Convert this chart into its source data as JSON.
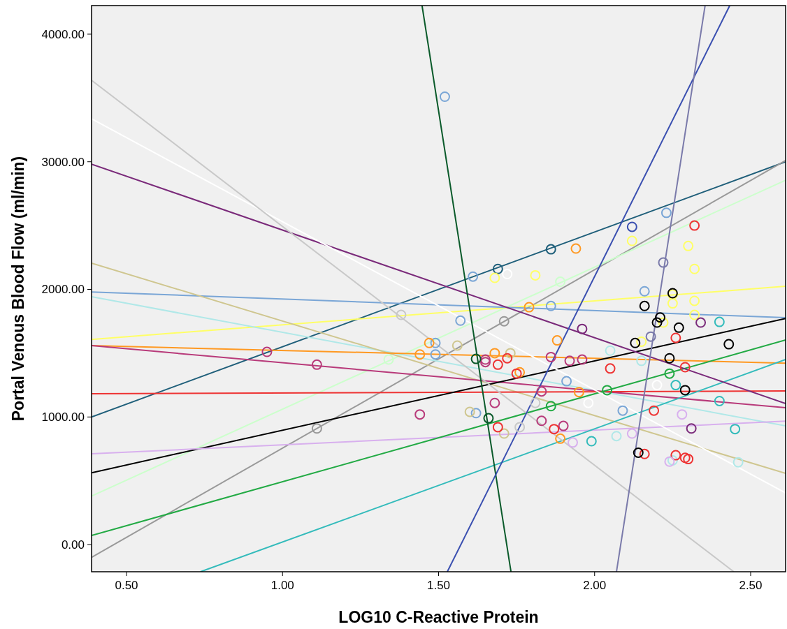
{
  "chart_data": {
    "type": "scatter",
    "xlabel": "LOG10 C-Reactive Protein",
    "ylabel": "Portal Venous Blood Flow (ml/min)",
    "xlim": [
      0.388,
      2.612
    ],
    "ylim": [
      -213,
      4224
    ],
    "xticks": [
      {
        "value": 0.5,
        "label": "0.50"
      },
      {
        "value": 1.0,
        "label": "1.00"
      },
      {
        "value": 1.5,
        "label": "1.50"
      },
      {
        "value": 2.0,
        "label": "2.00"
      },
      {
        "value": 2.5,
        "label": "2.50"
      }
    ],
    "yticks": [
      {
        "value": 0,
        "label": "0.00"
      },
      {
        "value": 1000,
        "label": "1000.00"
      },
      {
        "value": 2000,
        "label": "2000.00"
      },
      {
        "value": 3000,
        "label": "3000.00"
      },
      {
        "value": 4000,
        "label": "4000.00"
      }
    ],
    "grid": false,
    "marker": "circle",
    "series": [
      {
        "type": "scatter",
        "color": "#1f5f7a",
        "x": [
          1.69,
          1.86
        ],
        "values": [
          2160,
          2314
        ]
      },
      {
        "type": "line",
        "marker": "none",
        "color": "#1f5f7a",
        "x": [
          0.388,
          2.612
        ],
        "values": [
          1000,
          3000
        ]
      },
      {
        "type": "scatter",
        "color": "#999999",
        "x": [
          1.11,
          1.71
        ],
        "values": [
          910,
          1750
        ]
      },
      {
        "type": "line",
        "marker": "none",
        "color": "#999999",
        "x": [
          0.388,
          2.612
        ],
        "values": [
          -100,
          3010
        ]
      },
      {
        "type": "scatter",
        "color": "#ccffcc",
        "x": [
          1.34,
          1.89
        ],
        "values": [
          1450,
          2060
        ]
      },
      {
        "type": "line",
        "marker": "none",
        "color": "#ccffcc",
        "x": [
          0.388,
          2.612
        ],
        "values": [
          380,
          2856
        ]
      },
      {
        "type": "scatter",
        "color": "#ffff66",
        "x": [
          1.68,
          1.81,
          2.12,
          2.3,
          2.32,
          2.25,
          2.25,
          2.32,
          2.32,
          2.22,
          2.15
        ],
        "values": [
          2090,
          2110,
          2380,
          2340,
          2160,
          1960,
          1890,
          1910,
          1800,
          1740,
          1590
        ]
      },
      {
        "type": "line",
        "marker": "none",
        "color": "#ffff66",
        "x": [
          0.388,
          2.612
        ],
        "values": [
          1608,
          2024
        ]
      },
      {
        "type": "scatter",
        "color": "#7aa6d6",
        "x": [
          1.52,
          1.61,
          1.49,
          1.49,
          1.57,
          1.86,
          2.16,
          2.23,
          1.91,
          1.62,
          2.09
        ],
        "values": [
          3510,
          2100,
          1580,
          1490,
          1755,
          1870,
          1985,
          2600,
          1280,
          1030,
          1050
        ]
      },
      {
        "type": "line",
        "marker": "none",
        "color": "#7aa6d6",
        "x": [
          0.388,
          2.612
        ],
        "values": [
          1980,
          1778
        ]
      },
      {
        "type": "scatter",
        "color": "#b0e8e8",
        "x": [
          2.46,
          2.15,
          2.05,
          2.07,
          2.25
        ],
        "values": [
          645,
          1440,
          1520,
          850,
          660
        ]
      },
      {
        "type": "line",
        "marker": "none",
        "color": "#b0e8e8",
        "x": [
          0.388,
          2.612
        ],
        "values": [
          1942,
          930
        ]
      },
      {
        "type": "scatter",
        "color": "#cfc68f",
        "x": [
          1.56,
          1.6,
          1.73,
          1.71
        ],
        "values": [
          1560,
          1040,
          1500,
          870
        ]
      },
      {
        "type": "line",
        "marker": "none",
        "color": "#cfc68f",
        "x": [
          0.388,
          2.612
        ],
        "values": [
          2205,
          558
        ]
      },
      {
        "type": "scatter",
        "color": "#ff9922",
        "x": [
          1.94,
          1.44,
          1.47,
          1.68,
          1.88,
          1.79,
          1.76,
          1.95,
          1.89
        ],
        "values": [
          2320,
          1490,
          1580,
          1500,
          1600,
          1860,
          1350,
          1195,
          830
        ]
      },
      {
        "type": "line",
        "marker": "none",
        "color": "#ff9922",
        "x": [
          0.388,
          2.612
        ],
        "values": [
          1559,
          1422
        ]
      },
      {
        "type": "scatter",
        "color": "#b83a7a",
        "x": [
          0.95,
          1.11,
          1.44,
          1.65,
          1.65,
          1.68,
          1.83,
          1.83,
          1.86,
          1.92,
          1.96,
          1.9
        ],
        "values": [
          1510,
          1410,
          1020,
          1430,
          1450,
          1110,
          1200,
          970,
          1470,
          1440,
          1450,
          930
        ]
      },
      {
        "type": "line",
        "marker": "none",
        "color": "#b83a7a",
        "x": [
          0.388,
          2.612
        ],
        "values": [
          1559,
          1072
        ]
      },
      {
        "type": "scatter",
        "color": "#ee3333",
        "x": [
          1.72,
          1.75,
          1.69,
          1.69,
          1.87,
          2.05,
          2.19,
          2.26,
          2.32,
          2.29,
          2.26,
          2.16,
          2.29,
          2.3
        ],
        "values": [
          1460,
          1340,
          1410,
          920,
          905,
          1380,
          1050,
          1620,
          2500,
          1390,
          700,
          710,
          680,
          670
        ]
      },
      {
        "type": "line",
        "marker": "none",
        "color": "#ee3333",
        "x": [
          0.388,
          2.612
        ],
        "values": [
          1182,
          1204
        ]
      },
      {
        "type": "scatter",
        "color": "#000000",
        "x": [
          2.16,
          2.25,
          2.21,
          2.2,
          2.27,
          2.13,
          2.24,
          2.29,
          2.43,
          2.14
        ],
        "values": [
          1870,
          1970,
          1780,
          1740,
          1700,
          1580,
          1460,
          1210,
          1570,
          720
        ]
      },
      {
        "type": "line",
        "marker": "none",
        "color": "#000000",
        "x": [
          0.388,
          2.612
        ],
        "values": [
          563,
          1772
        ]
      },
      {
        "type": "scatter",
        "color": "#d8b0ee",
        "x": [
          2.12,
          1.93,
          2.28,
          2.24
        ],
        "values": [
          870,
          800,
          1020,
          650
        ]
      },
      {
        "type": "line",
        "marker": "none",
        "color": "#d8b0ee",
        "x": [
          0.388,
          2.612
        ],
        "values": [
          711,
          968
        ]
      },
      {
        "type": "scatter",
        "color": "#22aa44",
        "x": [
          1.86,
          2.04,
          2.24
        ],
        "values": [
          1085,
          1210,
          1340
        ]
      },
      {
        "type": "line",
        "marker": "none",
        "color": "#22aa44",
        "x": [
          0.388,
          2.612
        ],
        "values": [
          71,
          1603
        ]
      },
      {
        "type": "scatter",
        "color": "#33bbbb",
        "x": [
          1.99,
          2.26,
          2.4,
          2.4,
          2.45
        ],
        "values": [
          810,
          1250,
          1745,
          1125,
          905
        ]
      },
      {
        "type": "line",
        "marker": "none",
        "color": "#33bbbb",
        "x": [
          0.737,
          2.612
        ],
        "values": [
          -213,
          1450
        ]
      },
      {
        "type": "scatter",
        "color": "#7a2a7a",
        "x": [
          1.96,
          2.34,
          2.31
        ],
        "values": [
          1690,
          1740,
          910
        ]
      },
      {
        "type": "line",
        "marker": "none",
        "color": "#7a2a7a",
        "x": [
          0.388,
          2.612
        ],
        "values": [
          2981,
          1105
        ]
      },
      {
        "type": "scatter",
        "color": "#ffffff",
        "x": [
          1.72,
          1.98,
          2.2
        ],
        "values": [
          2120,
          1110,
          1250
        ]
      },
      {
        "type": "line",
        "marker": "none",
        "color": "#ffffff",
        "x": [
          0.388,
          2.612
        ],
        "values": [
          3337,
          405
        ]
      },
      {
        "type": "scatter",
        "color": "#c8c8c8",
        "x": [
          1.38,
          1.76,
          1.81
        ],
        "values": [
          1800,
          920,
          1110
        ]
      },
      {
        "type": "line",
        "marker": "none",
        "color": "#c8c8c8",
        "x": [
          0.388,
          2.446
        ],
        "values": [
          3638,
          -213
        ]
      },
      {
        "type": "scatter",
        "color": "#0a5a2a",
        "x": [
          1.62,
          1.66
        ],
        "values": [
          1455,
          990
        ]
      },
      {
        "type": "line",
        "marker": "none",
        "color": "#0a5a2a",
        "x": [
          1.447,
          1.732
        ],
        "values": [
          4224,
          -213
        ]
      },
      {
        "type": "scatter",
        "color": "#3a4fb0",
        "x": [
          2.12
        ],
        "values": [
          2490
        ]
      },
      {
        "type": "line",
        "marker": "none",
        "color": "#3a4fb0",
        "x": [
          1.528,
          2.433
        ],
        "values": [
          -213,
          4224
        ]
      },
      {
        "type": "scatter",
        "color": "#7a7aaa",
        "x": [
          2.22,
          2.18
        ],
        "values": [
          2210,
          1630
        ]
      },
      {
        "type": "line",
        "marker": "none",
        "color": "#7a7aaa",
        "x": [
          2.07,
          2.354
        ],
        "values": [
          -213,
          4224
        ]
      }
    ]
  }
}
